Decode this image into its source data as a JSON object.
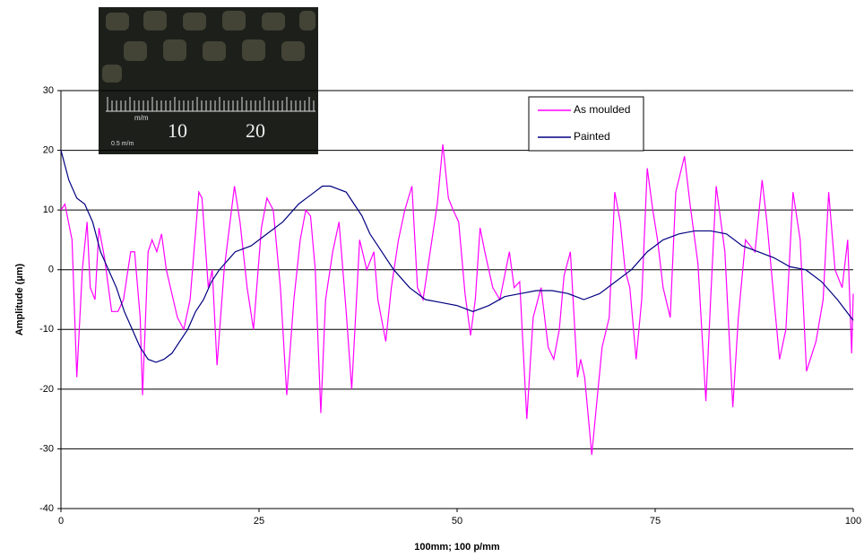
{
  "chart_data": {
    "type": "line",
    "x_label": "100mm; 100 p/mm",
    "y_label": "Amplitude (µm)",
    "inset_labels": [
      "m/m",
      "10",
      "20",
      "0.5 m/m"
    ],
    "xlim": [
      0,
      100
    ],
    "xticks": [
      0,
      25,
      50,
      75,
      100
    ],
    "ylim": [
      -40,
      30
    ],
    "yticks": [
      -40,
      -30,
      -20,
      -10,
      0,
      10,
      20,
      30
    ],
    "grid": true,
    "legend": "upper right",
    "series": [
      {
        "name": "As moulded",
        "color": "#ff00ff",
        "x": [
          0,
          0.5,
          1.4,
          2,
          2.7,
          3.3,
          3.7,
          4.3,
          4.8,
          5.5,
          6.4,
          7.2,
          7.9,
          8.8,
          9.3,
          10,
          10.3,
          11,
          11.5,
          12.1,
          12.7,
          13.3,
          14.7,
          15.5,
          16.3,
          17.4,
          17.8,
          18.6,
          19.1,
          19.7,
          20.6,
          21.9,
          22.6,
          23.5,
          24.3,
          25.3,
          26,
          26.8,
          27.7,
          28.5,
          29.4,
          30.2,
          30.9,
          31.5,
          32.1,
          32.8,
          33.4,
          34.3,
          35.1,
          36,
          36.7,
          37.7,
          38.6,
          39.5,
          40,
          41,
          41.7,
          42.6,
          43.4,
          44.3,
          45,
          45.7,
          46.6,
          47.5,
          48.2,
          48.9,
          49.5,
          50.2,
          51,
          51.7,
          52.3,
          52.9,
          53.5,
          54.5,
          55.4,
          56.6,
          57.2,
          57.9,
          58.8,
          59.6,
          60.6,
          61.5,
          62.2,
          62.9,
          63.5,
          64.3,
          65.2,
          65.6,
          66.1,
          67,
          67.5,
          68.3,
          69.2,
          69.9,
          70.6,
          71.2,
          71.8,
          72.6,
          73.3,
          74,
          74.7,
          75.3,
          76,
          76.9,
          77.6,
          78.7,
          79.4,
          80.4,
          81.4,
          82,
          82.7,
          83.8,
          84.8,
          85.5,
          86.4,
          87.6,
          88.5,
          89.1,
          90,
          90.7,
          91.5,
          92.4,
          93.3,
          94.1,
          95.3,
          96.2,
          96.9,
          97.7,
          98.6,
          99.3,
          99.8,
          100
        ],
        "values": [
          10,
          11,
          5,
          -18,
          0,
          8,
          -3,
          -5,
          7,
          2,
          -7,
          -7,
          -5,
          3,
          3,
          -8,
          -21,
          3,
          5,
          3,
          6,
          0,
          -8,
          -10,
          -5,
          13,
          12,
          -3,
          0,
          -16,
          0,
          14,
          8,
          -3,
          -10,
          7,
          12,
          10,
          -3,
          -21,
          -5,
          5,
          10,
          9,
          0,
          -24,
          -5,
          3,
          8,
          -7,
          -20,
          5,
          0,
          3,
          -5,
          -12,
          -3,
          5,
          10,
          14,
          -3,
          -5,
          3,
          11,
          21,
          12,
          10,
          8,
          -4,
          -11,
          -5,
          7,
          3,
          -3,
          -5,
          3,
          -3,
          -2,
          -25,
          -8,
          -3,
          -13,
          -15,
          -10,
          -1,
          3,
          -18,
          -15,
          -18,
          -31,
          -24,
          -13,
          -8,
          13,
          8,
          0,
          -3,
          -15,
          -5,
          17,
          10,
          5,
          -3,
          -8,
          13,
          19,
          11,
          1,
          -22,
          -5,
          14,
          3,
          -23,
          -8,
          5,
          3,
          15,
          8,
          -5,
          -15,
          -10,
          13,
          5,
          -17,
          -12,
          -5,
          13,
          0,
          -3,
          5,
          -14,
          -4
        ]
      },
      {
        "name": "Painted",
        "color": "#000080",
        "x": [
          0,
          1,
          2,
          3,
          4,
          5,
          6,
          7,
          8,
          9,
          10,
          11,
          12,
          13,
          14,
          15,
          16,
          17,
          18,
          19,
          20,
          22,
          24,
          26,
          28,
          30,
          31,
          32,
          33,
          34,
          35,
          36,
          37,
          38,
          39,
          40,
          41,
          42,
          44,
          46,
          48,
          50,
          52,
          54,
          56,
          58,
          60,
          62,
          64,
          66,
          68,
          70,
          72,
          74,
          76,
          78,
          80,
          82,
          84,
          86,
          88,
          90,
          92,
          94,
          96,
          98,
          100
        ],
        "values": [
          20,
          15,
          12,
          11,
          8,
          3,
          0,
          -3,
          -7,
          -10,
          -13,
          -15,
          -15.5,
          -15,
          -14,
          -12,
          -10,
          -7,
          -5,
          -2,
          0,
          3,
          4,
          6,
          8,
          11,
          12,
          13,
          14,
          14,
          13.5,
          13,
          11,
          9,
          6,
          4,
          2,
          0,
          -3,
          -5,
          -5.5,
          -6,
          -7,
          -6,
          -4.5,
          -4,
          -3.5,
          -3.5,
          -4,
          -5,
          -4,
          -2,
          0,
          3,
          5,
          6,
          6.5,
          6.5,
          6,
          4,
          3,
          2,
          0.5,
          0,
          -2,
          -5,
          -8.5
        ]
      }
    ]
  }
}
